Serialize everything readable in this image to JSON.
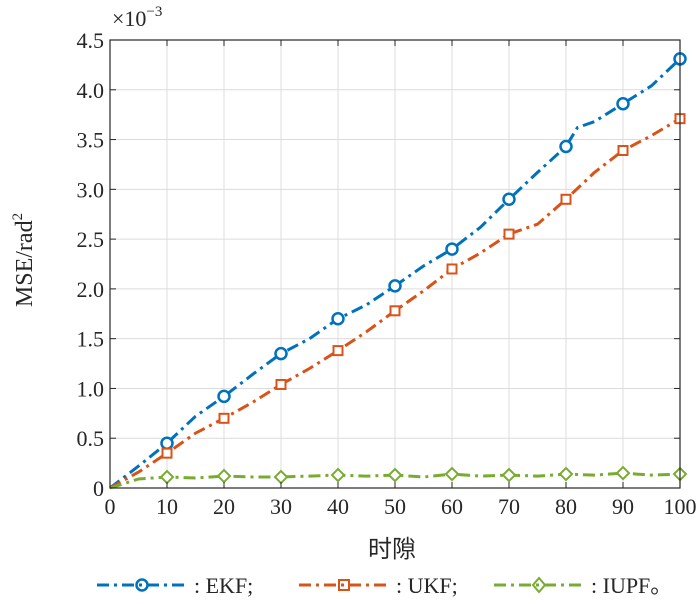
{
  "chart_data": {
    "type": "line",
    "xlabel": "时隙",
    "ylabel_main": "MSE/rad",
    "ylabel_sup": "2",
    "exponent_base": "×10",
    "exponent_power": "−3",
    "xlim": [
      0,
      100
    ],
    "ylim": [
      0,
      4.5
    ],
    "xticks": [
      0,
      10,
      20,
      30,
      40,
      50,
      60,
      70,
      80,
      90,
      100
    ],
    "yticks": [
      0,
      0.5,
      1.0,
      1.5,
      2.0,
      2.5,
      3.0,
      3.5,
      4.0,
      4.5
    ],
    "xtick_labels": [
      "0",
      "10",
      "20",
      "30",
      "40",
      "50",
      "60",
      "70",
      "80",
      "90",
      "100"
    ],
    "ytick_labels": [
      "0",
      "0.5",
      "1.0",
      "1.5",
      "2.0",
      "2.5",
      "3.0",
      "3.5",
      "4.0",
      "4.5"
    ],
    "grid": true,
    "legend_position": "bottom",
    "series": [
      {
        "name": ": EKF;",
        "color": "#0072BD",
        "marker": "circle",
        "x": [
          0,
          5,
          10,
          15,
          20,
          25,
          30,
          35,
          40,
          45,
          50,
          55,
          60,
          65,
          70,
          75,
          80,
          82,
          85,
          90,
          95,
          100
        ],
        "y": [
          0.0,
          0.22,
          0.45,
          0.72,
          0.92,
          1.14,
          1.35,
          1.5,
          1.7,
          1.84,
          2.03,
          2.23,
          2.4,
          2.62,
          2.9,
          3.17,
          3.43,
          3.62,
          3.68,
          3.86,
          4.04,
          4.31
        ],
        "marker_x": [
          10,
          20,
          30,
          40,
          50,
          60,
          70,
          80,
          90,
          100
        ]
      },
      {
        "name": ": UKF;",
        "color": "#D95319",
        "marker": "square",
        "x": [
          0,
          5,
          10,
          15,
          20,
          25,
          30,
          35,
          40,
          45,
          50,
          55,
          60,
          65,
          70,
          75,
          80,
          85,
          90,
          95,
          100
        ],
        "y": [
          0.0,
          0.16,
          0.35,
          0.55,
          0.7,
          0.86,
          1.04,
          1.2,
          1.38,
          1.57,
          1.78,
          1.98,
          2.2,
          2.36,
          2.55,
          2.65,
          2.9,
          3.17,
          3.39,
          3.54,
          3.71
        ],
        "marker_x": [
          10,
          20,
          30,
          40,
          50,
          60,
          70,
          80,
          90,
          100
        ]
      },
      {
        "name": ": IUPF。",
        "color": "#77AC30",
        "marker": "diamond",
        "x": [
          0,
          5,
          10,
          15,
          20,
          25,
          30,
          35,
          40,
          45,
          50,
          55,
          60,
          65,
          70,
          75,
          80,
          85,
          90,
          95,
          100
        ],
        "y": [
          0.0,
          0.09,
          0.11,
          0.1,
          0.12,
          0.11,
          0.11,
          0.12,
          0.13,
          0.12,
          0.13,
          0.11,
          0.14,
          0.12,
          0.13,
          0.12,
          0.14,
          0.13,
          0.15,
          0.13,
          0.14
        ],
        "marker_x": [
          10,
          20,
          30,
          40,
          50,
          60,
          70,
          80,
          90,
          100
        ]
      }
    ]
  }
}
